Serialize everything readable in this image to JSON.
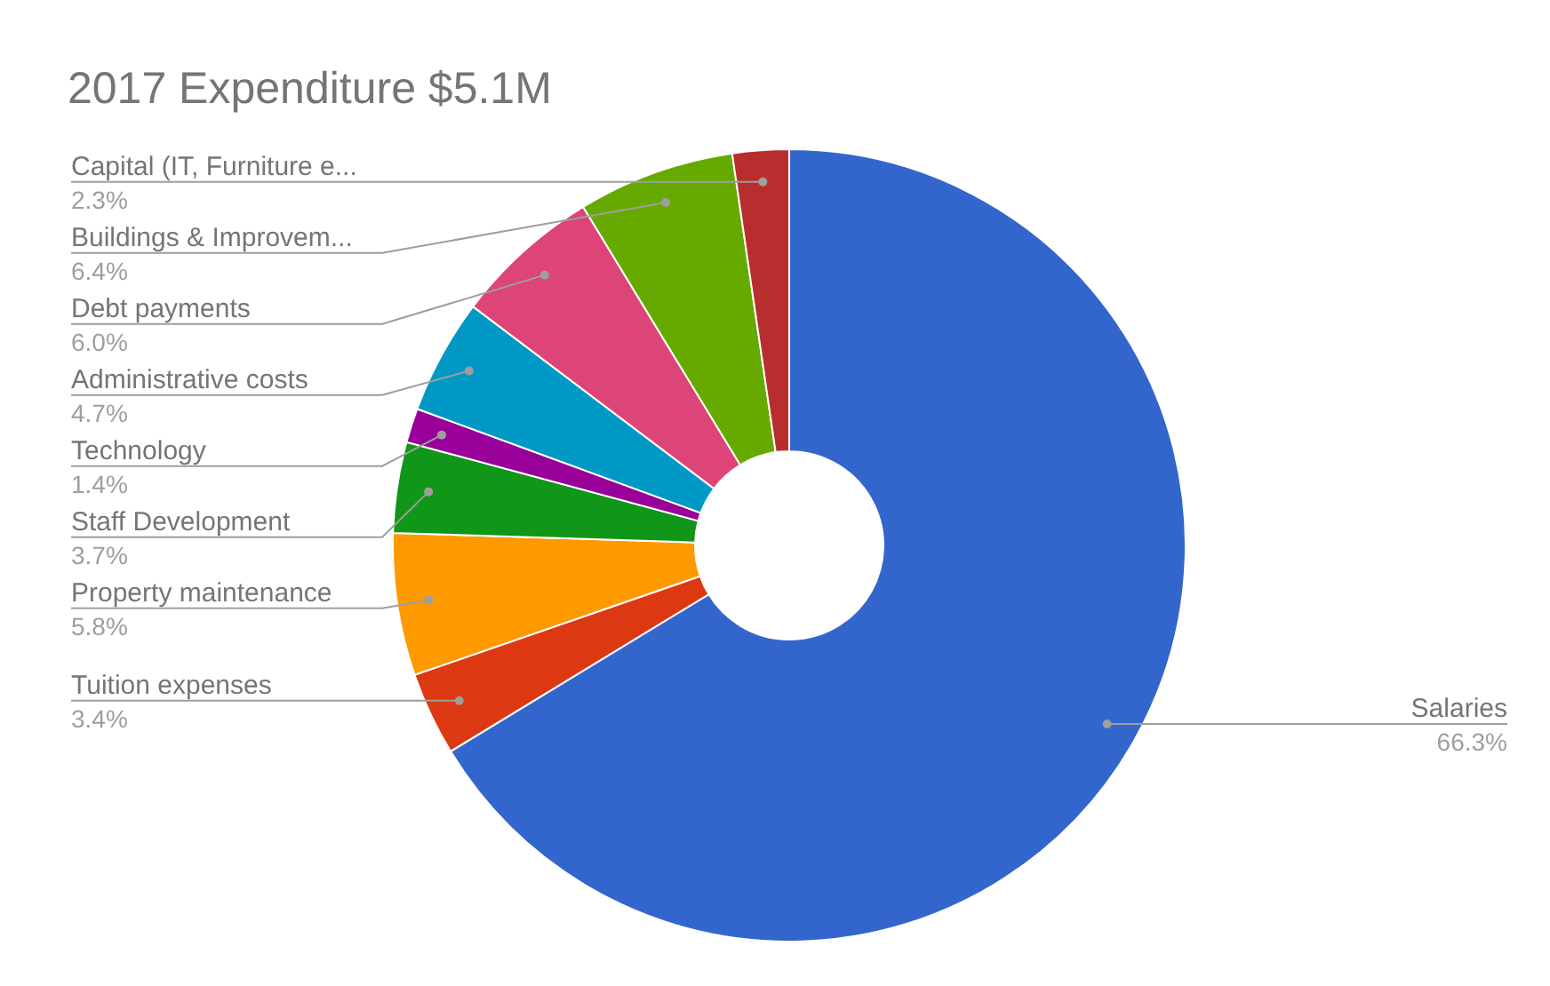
{
  "chart_data": {
    "type": "donut",
    "title": "2017 Expenditure $5.1M",
    "categories": [
      "Salaries",
      "Tuition expenses",
      "Property maintenance",
      "Staff Development",
      "Technology",
      "Administrative costs",
      "Debt payments",
      "Buildings & Improvem...",
      "Capital (IT, Furniture e..."
    ],
    "values": [
      66.3,
      3.4,
      5.8,
      3.7,
      1.4,
      4.7,
      6.0,
      6.4,
      2.3
    ],
    "colors": [
      "#3366cc",
      "#dc3912",
      "#ff9900",
      "#109618",
      "#990099",
      "#0099c6",
      "#dd4477",
      "#66aa00",
      "#b82e2e"
    ],
    "value_labels": [
      "66.3%",
      "3.4%",
      "5.8%",
      "3.7%",
      "1.4%",
      "4.7%",
      "6.0%",
      "6.4%",
      "2.3%"
    ]
  }
}
